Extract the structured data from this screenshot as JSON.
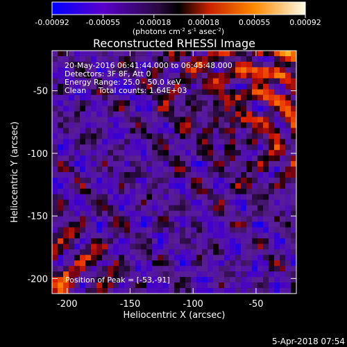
{
  "colorbar": {
    "tick_labels": [
      "-0.00092",
      "-0.00055",
      "-0.00018",
      "0.00018",
      "0.00055",
      "0.00092"
    ],
    "range": [
      -0.00092,
      0.00092
    ],
    "units_label_parts": [
      "(photons cm",
      "-2",
      " s",
      "-1",
      " asec",
      "-2",
      ")"
    ],
    "colors": [
      "#0000ff",
      "#5a00cc",
      "#7a2fa8",
      "#000000",
      "#e83000",
      "#ff8a00",
      "#fff8d0"
    ]
  },
  "chart_data": {
    "type": "heatmap",
    "title": "Reconstructed RHESSI Image",
    "xlabel": "Heliocentric X (arcsec)",
    "ylabel": "Heliocentric Y (arcsec)",
    "xlim": [
      -212,
      -18
    ],
    "ylim": [
      -212,
      -18
    ],
    "x_ticks": [
      -200,
      -150,
      -100,
      -50
    ],
    "y_ticks": [
      -200,
      -150,
      -100,
      -50
    ],
    "x_tick_labels": [
      "-200",
      "-150",
      "-100",
      "-50"
    ],
    "y_tick_labels": [
      "-200",
      "-150",
      "-100",
      "-50"
    ],
    "grid": false,
    "peak": {
      "x": -53,
      "y": -91
    },
    "info_lines": [
      "20-May-2016 06:41:44.000 to 06:45:48.000",
      "Detectors: 3F 8F, Att 0",
      "Energy Range: 25.0 - 50.0 keV",
      "Clean     Total counts: 1.64E+03"
    ],
    "peak_label": "Position of Peak = [-53,-91]",
    "colors": {
      "positive_hot": "#ff6a00",
      "negative_purple": "#5a1fa0",
      "background": "#000000"
    }
  },
  "footer": {
    "timestamp": "5-Apr-2018 07:54"
  }
}
